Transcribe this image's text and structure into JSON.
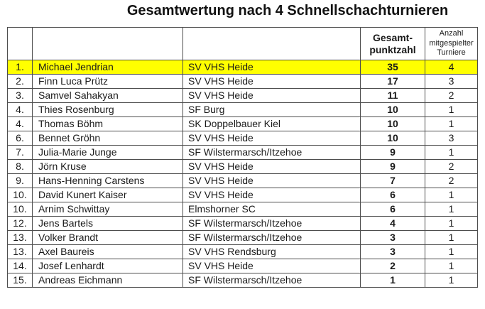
{
  "page": {
    "title": "Gesamtwertung nach 4 Schnellschachturnieren"
  },
  "colors": {
    "highlight_row": "#ffff00",
    "table_border": "#4d4d4d",
    "text": "#1a1a1a"
  },
  "table": {
    "headers": {
      "rank": "",
      "name": "",
      "club": "",
      "points": "Gesamt-\npunktzahl",
      "tournaments": "Anzahl\nmitgespielter\nTurniere"
    },
    "rows": [
      {
        "rank": "1.",
        "name": "Michael Jendrian",
        "club": "SV VHS Heide",
        "points": "35",
        "tournaments": "4",
        "highlight": true
      },
      {
        "rank": "2.",
        "name": "Finn Luca Prütz",
        "club": "SV VHS Heide",
        "points": "17",
        "tournaments": "3",
        "highlight": false
      },
      {
        "rank": "3.",
        "name": "Samvel Sahakyan",
        "club": "SV VHS Heide",
        "points": "11",
        "tournaments": "2",
        "highlight": false
      },
      {
        "rank": "4.",
        "name": "Thies Rosenburg",
        "club": "SF Burg",
        "points": "10",
        "tournaments": "1",
        "highlight": false
      },
      {
        "rank": "4.",
        "name": "Thomas Böhm",
        "club": "SK Doppelbauer Kiel",
        "points": "10",
        "tournaments": "1",
        "highlight": false
      },
      {
        "rank": "6.",
        "name": "Bennet Gröhn",
        "club": "SV VHS Heide",
        "points": "10",
        "tournaments": "3",
        "highlight": false
      },
      {
        "rank": "7.",
        "name": "Julia-Marie Junge",
        "club": "SF Wilstermarsch/Itzehoe",
        "points": "9",
        "tournaments": "1",
        "highlight": false
      },
      {
        "rank": "8.",
        "name": "Jörn Kruse",
        "club": "SV VHS Heide",
        "points": "9",
        "tournaments": "2",
        "highlight": false
      },
      {
        "rank": "9.",
        "name": "Hans-Henning Carstens",
        "club": "SV VHS Heide",
        "points": "7",
        "tournaments": "2",
        "highlight": false
      },
      {
        "rank": "10.",
        "name": "David Kunert Kaiser",
        "club": "SV VHS Heide",
        "points": "6",
        "tournaments": "1",
        "highlight": false
      },
      {
        "rank": "10.",
        "name": "Arnim Schwittay",
        "club": "Elmshorner SC",
        "points": "6",
        "tournaments": "1",
        "highlight": false
      },
      {
        "rank": "12.",
        "name": "Jens Bartels",
        "club": "SF Wilstermarsch/Itzehoe",
        "points": "4",
        "tournaments": "1",
        "highlight": false
      },
      {
        "rank": "13.",
        "name": "Volker Brandt",
        "club": "SF Wilstermarsch/Itzehoe",
        "points": "3",
        "tournaments": "1",
        "highlight": false
      },
      {
        "rank": "13.",
        "name": "Axel Baureis",
        "club": "SV VHS Rendsburg",
        "points": "3",
        "tournaments": "1",
        "highlight": false
      },
      {
        "rank": "14.",
        "name": "Josef Lenhardt",
        "club": "SV VHS Heide",
        "points": "2",
        "tournaments": "1",
        "highlight": false
      },
      {
        "rank": "15.",
        "name": "Andreas Eichmann",
        "club": "SF Wilstermarsch/Itzehoe",
        "points": "1",
        "tournaments": "1",
        "highlight": false
      }
    ]
  }
}
